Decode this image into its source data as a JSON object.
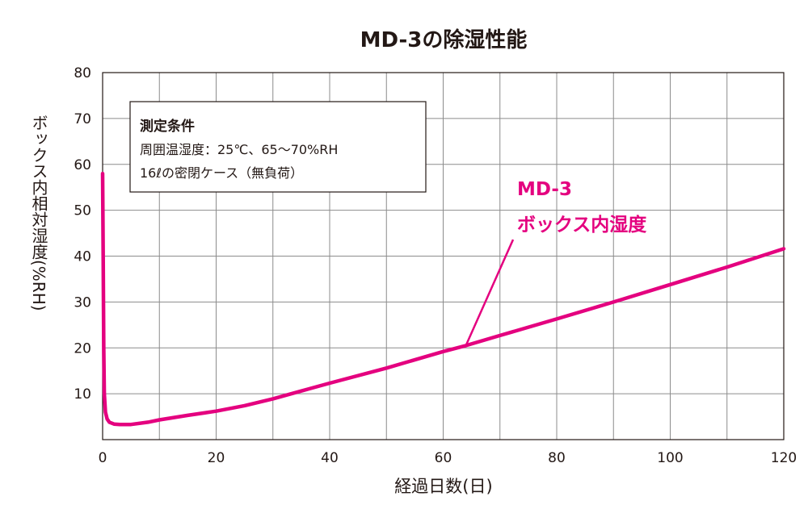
{
  "chart_data": {
    "type": "line",
    "title": "MD-3の除湿性能",
    "xlabel": "経過日数(日)",
    "ylabel": "ボックス内相対湿度(%RH)",
    "xlim": [
      0,
      120
    ],
    "ylim": [
      0,
      80
    ],
    "x_ticks": [
      0,
      20,
      40,
      60,
      80,
      100,
      120
    ],
    "y_ticks": [
      10,
      20,
      30,
      40,
      50,
      60,
      70,
      80
    ],
    "grid": true,
    "conditions": {
      "heading": "測定条件",
      "lines": [
        "周囲温湿度：25℃、65～70%RH",
        "16ℓの密閉ケース（無負荷）"
      ]
    },
    "series": [
      {
        "name_line1": "MD-3",
        "name_line2": "ボックス内湿度",
        "color": "#e4007f",
        "x": [
          0,
          0.1,
          0.2,
          0.3,
          0.5,
          0.8,
          1.2,
          2,
          3,
          5,
          8,
          10,
          15,
          20,
          25,
          30,
          35,
          40,
          50,
          60,
          64,
          70,
          80,
          90,
          100,
          110,
          120
        ],
        "y": [
          58,
          40,
          20,
          10,
          6,
          4.5,
          3.8,
          3.4,
          3.3,
          3.3,
          3.8,
          4.3,
          5.3,
          6.2,
          7.4,
          8.9,
          10.6,
          12.3,
          15.6,
          19.2,
          20.5,
          22.7,
          26.3,
          30.0,
          33.8,
          37.6,
          41.6
        ]
      }
    ],
    "annotation_x": 64
  }
}
